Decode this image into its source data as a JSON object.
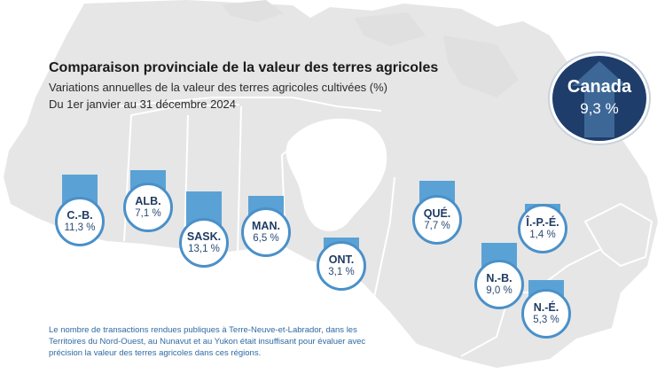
{
  "title": "Comparaison provinciale de la valeur des terres agricoles",
  "subtitle": "Variations annuelles de la valeur des terres agricoles cultivées (%)",
  "period": "Du 1er janvier au 31 décembre 2024",
  "national": {
    "name": "Canada",
    "value_label": "9,3 %",
    "value": 9.3
  },
  "provinces": [
    {
      "key": "bc",
      "abbr": "C.-B.",
      "value_label": "11,3 %",
      "value": 11.3
    },
    {
      "key": "ab",
      "abbr": "ALB.",
      "value_label": "7,1 %",
      "value": 7.1
    },
    {
      "key": "sk",
      "abbr": "SASK.",
      "value_label": "13,1 %",
      "value": 13.1
    },
    {
      "key": "mb",
      "abbr": "MAN.",
      "value_label": "6,5 %",
      "value": 6.5
    },
    {
      "key": "on",
      "abbr": "ONT.",
      "value_label": "3,1 %",
      "value": 3.1
    },
    {
      "key": "qc",
      "abbr": "QUÉ.",
      "value_label": "7,7 %",
      "value": 7.7
    },
    {
      "key": "pe",
      "abbr": "Î.-P.-É.",
      "value_label": "1,4 %",
      "value": 1.4
    },
    {
      "key": "nb",
      "abbr": "N.-B.",
      "value_label": "9,0 %",
      "value": 9.0
    },
    {
      "key": "ns",
      "abbr": "N.-É.",
      "value_label": "5,3 %",
      "value": 5.3
    }
  ],
  "note": "Le nombre de transactions rendues publiques à Terre-Neuve-et-Labrador, dans les Territoires du Nord-Ouest, au Nunavut et au Yukon était insuffisant pour évaluer avec précision la valeur des terres agricoles dans ces régions.",
  "colors": {
    "map_fill": "#e6e6e6",
    "map_border": "#ffffff",
    "bar": "#5aa2d6",
    "circle_border": "#4a90c9",
    "badge": "#1e3d6b",
    "note_text": "#2e6aa3"
  }
}
